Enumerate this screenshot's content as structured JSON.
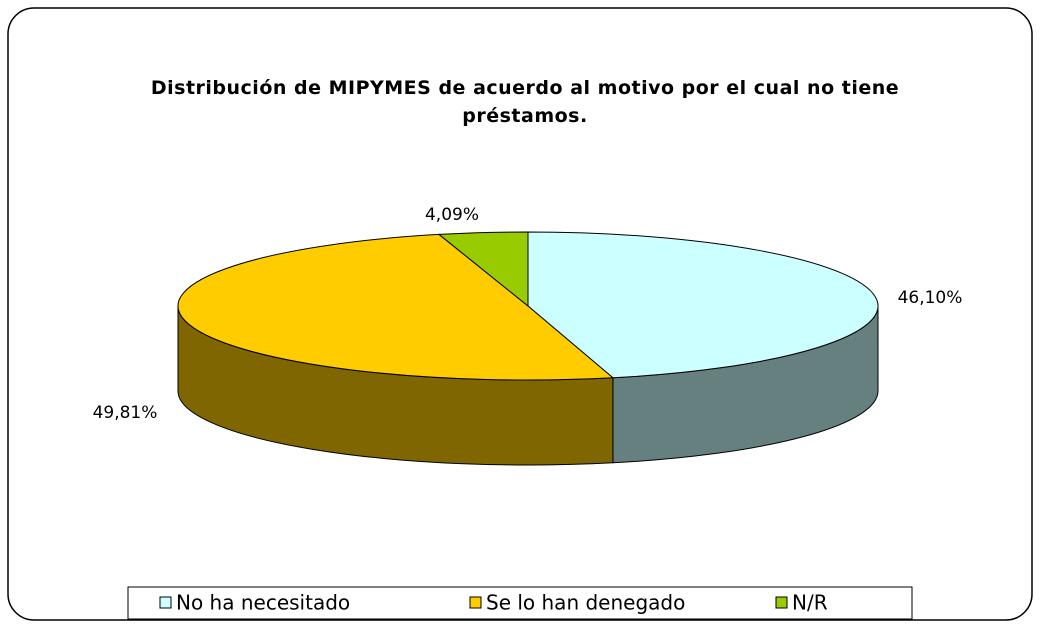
{
  "chart_data": {
    "type": "pie3d",
    "title": "Distribución de MIPYMES de acuerdo al motivo por el cual no tiene préstamos.",
    "categories": [
      "No ha necesitado",
      "Se lo han denegado",
      "N/R"
    ],
    "values": [
      46.1,
      49.81,
      4.09
    ],
    "value_labels": [
      "46,10%",
      "49,81%",
      "4,09%"
    ],
    "colors": [
      "#ccffff",
      "#ffcc00",
      "#99cc00"
    ],
    "legend": "bottom"
  }
}
